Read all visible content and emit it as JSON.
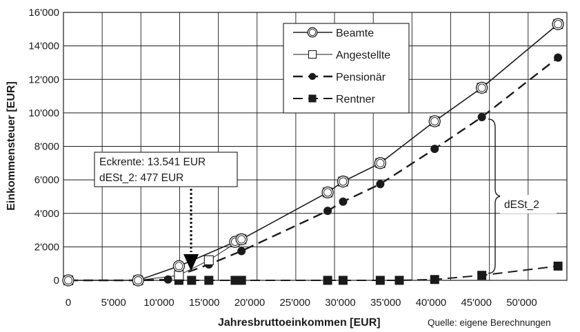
{
  "chart_data": {
    "type": "line",
    "xlabel": "Jahresbruttoeinkommen [EUR]",
    "ylabel": "Einkommensteuer [EUR]",
    "source_note": "Quelle: eigene Berechnungen",
    "xlim": [
      0,
      55000
    ],
    "ylim": [
      0,
      16000
    ],
    "x_ticks": [
      0,
      5000,
      10000,
      15000,
      20000,
      25000,
      30000,
      35000,
      40000,
      45000,
      50000
    ],
    "x_tick_labels": [
      "0",
      "5'000",
      "10'000",
      "15'000",
      "20'000",
      "25'000",
      "30'000",
      "35'000",
      "40'000",
      "45'000",
      "50'000"
    ],
    "y_ticks": [
      0,
      2000,
      4000,
      6000,
      8000,
      10000,
      12000,
      14000,
      16000
    ],
    "y_tick_labels": [
      "0",
      "2'000",
      "4'000",
      "6'000",
      "8'000",
      "10'000",
      "12'000",
      "14'000",
      "16'000"
    ],
    "grid": true,
    "legend_position": "top-right",
    "series": [
      {
        "name": "Beamte",
        "marker": "circle-open",
        "line": "solid",
        "line_width": 1.6,
        "x": [
          0,
          7700,
          12200,
          18400,
          19100,
          28600,
          30300,
          34400,
          40400,
          45600,
          54000
        ],
        "y": [
          0,
          0,
          850,
          2300,
          2450,
          5250,
          5900,
          7000,
          9500,
          11500,
          15300
        ]
      },
      {
        "name": "Angestellte",
        "marker": "square-open",
        "line": "solid",
        "line_width": 0.9,
        "x": [
          0,
          7700,
          12200,
          15500,
          19100,
          28600,
          30300,
          34400,
          40400,
          45600,
          54000
        ],
        "y": [
          0,
          0,
          300,
          1200,
          2450,
          5250,
          5900,
          7000,
          9500,
          11500,
          15300
        ]
      },
      {
        "name": "Pensionär",
        "marker": "circle-filled",
        "line": "dashed",
        "line_width": 2.4,
        "x": [
          0,
          7700,
          11000,
          12200,
          15500,
          19100,
          28600,
          30300,
          34400,
          40400,
          45600,
          54000
        ],
        "y": [
          0,
          0,
          50,
          300,
          950,
          1750,
          4150,
          4700,
          5750,
          7850,
          9750,
          13300
        ]
      },
      {
        "name": "Rentner",
        "marker": "square-filled",
        "line": "dashed",
        "line_width": 2.0,
        "x": [
          0,
          7700,
          12200,
          13600,
          15500,
          18400,
          19100,
          28600,
          30300,
          34400,
          36500,
          40400,
          45600,
          54000
        ],
        "y": [
          0,
          0,
          0,
          0,
          0,
          0,
          0,
          0,
          0,
          0,
          0,
          50,
          300,
          850
        ]
      }
    ],
    "annotations": [
      {
        "text_lines": [
          "Eckrente: 13.541 EUR",
          "dESt_2: 477 EUR"
        ],
        "arrow_to": {
          "x": 13541,
          "y": 477
        }
      },
      {
        "text": "dESt_2",
        "brace_between": {
          "x": 45600,
          "y_low": 300,
          "y_high": 9750
        }
      }
    ]
  }
}
